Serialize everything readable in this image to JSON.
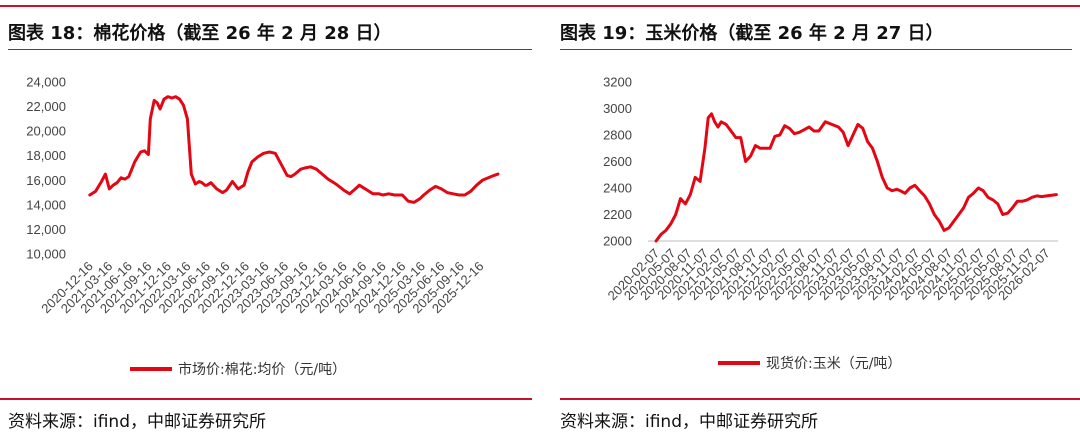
{
  "header": {
    "left_title": "图表 18：棉花价格（截至 26 年 2 月 28 日）",
    "right_title": "图表 19：玉米价格（截至 26 年 2 月 27 日）"
  },
  "footer": {
    "left_source": "资料来源：ifind，中邮证券研究所",
    "right_source": "资料来源：ifind，中邮证券研究所"
  },
  "colors": {
    "accent": "#c8102e",
    "line": "#e30613"
  },
  "chart_data": [
    {
      "type": "line",
      "ylim": [
        10000,
        24000
      ],
      "yticks": [
        "10,000",
        "12,000",
        "14,000",
        "16,000",
        "18,000",
        "20,000",
        "22,000",
        "24,000"
      ],
      "ytick_values": [
        10000,
        12000,
        14000,
        16000,
        18000,
        20000,
        22000,
        24000
      ],
      "xticks": [
        "2020-12-16",
        "2021-03-16",
        "2021-06-16",
        "2021-09-16",
        "2021-12-16",
        "2022-03-16",
        "2022-06-16",
        "2022-09-16",
        "2022-12-16",
        "2023-03-16",
        "2023-06-16",
        "2023-09-16",
        "2023-12-16",
        "2024-03-16",
        "2024-06-16",
        "2024-09-16",
        "2024-12-16",
        "2025-03-16",
        "2025-06-16",
        "2025-09-16",
        "2025-12-16"
      ],
      "xlim": [
        -0.5,
        21.0
      ],
      "grid": false,
      "legend": "bottom",
      "series": [
        {
          "name": "市场价:棉花:均价（元/吨）",
          "x": [
            0,
            0.3,
            0.6,
            0.8,
            1.0,
            1.2,
            1.4,
            1.6,
            1.8,
            2.0,
            2.3,
            2.6,
            2.8,
            3.0,
            3.1,
            3.3,
            3.45,
            3.6,
            3.8,
            4.0,
            4.2,
            4.4,
            4.6,
            4.8,
            5.0,
            5.2,
            5.4,
            5.6,
            5.75,
            5.9,
            6.0,
            6.2,
            6.5,
            6.8,
            7.0,
            7.3,
            7.6,
            7.9,
            8.1,
            8.3,
            8.6,
            8.9,
            9.2,
            9.5,
            9.8,
            10.1,
            10.3,
            10.5,
            10.8,
            11.0,
            11.3,
            11.6,
            11.9,
            12.2,
            12.6,
            13.0,
            13.3,
            13.6,
            13.8,
            14.0,
            14.2,
            14.5,
            14.8,
            15.0,
            15.3,
            15.6,
            16.0,
            16.3,
            16.6,
            16.9,
            17.1,
            17.4,
            17.7,
            18.0,
            18.3,
            18.6,
            18.9,
            19.2,
            19.5,
            19.8,
            20.1,
            20.4,
            20.7,
            20.9
          ],
          "values": [
            14800,
            15100,
            15900,
            16500,
            15300,
            15600,
            15800,
            16200,
            16100,
            16300,
            17500,
            18300,
            18400,
            18100,
            21000,
            22500,
            22300,
            21800,
            22600,
            22800,
            22700,
            22800,
            22600,
            22100,
            21000,
            16500,
            15700,
            15900,
            15800,
            15600,
            15600,
            15800,
            15300,
            15000,
            15200,
            15900,
            15300,
            15600,
            16700,
            17500,
            17900,
            18200,
            18300,
            18200,
            17300,
            16400,
            16300,
            16500,
            16900,
            17000,
            17100,
            16900,
            16500,
            16100,
            15700,
            15200,
            14900,
            15300,
            15600,
            15400,
            15200,
            14900,
            14900,
            14800,
            14900,
            14800,
            14800,
            14300,
            14200,
            14500,
            14800,
            15200,
            15500,
            15300,
            15000,
            14900,
            14800,
            14800,
            15100,
            15600,
            16000,
            16200,
            16400,
            16500
          ]
        }
      ]
    },
    {
      "type": "line",
      "ylim": [
        2000,
        3200
      ],
      "yticks": [
        "2000",
        "2200",
        "2400",
        "2600",
        "2800",
        "3000",
        "3200"
      ],
      "ytick_values": [
        2000,
        2200,
        2400,
        2600,
        2800,
        3000,
        3200
      ],
      "xticks": [
        "2020-02-07",
        "2020-05-07",
        "2020-08-07",
        "2020-11-07",
        "2021-02-07",
        "2021-05-07",
        "2021-08-07",
        "2021-11-07",
        "2022-02-07",
        "2022-05-07",
        "2022-08-07",
        "2022-11-07",
        "2023-02-07",
        "2023-05-07",
        "2023-08-07",
        "2023-11-07",
        "2024-02-07",
        "2024-05-07",
        "2024-08-07",
        "2024-11-07",
        "2025-02-07",
        "2025-05-07",
        "2025-08-07",
        "2025-11-07",
        "2026-02-07"
      ],
      "xlim": [
        -0.5,
        24.7
      ],
      "grid": false,
      "legend": "bottom",
      "series": [
        {
          "name": "现货价:玉米（元/吨）",
          "x": [
            0,
            0.3,
            0.6,
            0.9,
            1.2,
            1.5,
            1.8,
            2.1,
            2.4,
            2.7,
            3.0,
            3.2,
            3.4,
            3.6,
            3.8,
            4.0,
            4.3,
            4.6,
            4.9,
            5.2,
            5.5,
            5.8,
            6.1,
            6.4,
            6.7,
            7.0,
            7.3,
            7.6,
            7.9,
            8.2,
            8.5,
            8.8,
            9.1,
            9.4,
            9.7,
            10.0,
            10.4,
            10.8,
            11.2,
            11.5,
            11.8,
            12.1,
            12.4,
            12.7,
            13.0,
            13.3,
            13.6,
            13.9,
            14.2,
            14.5,
            14.8,
            15.0,
            15.3,
            15.6,
            15.9,
            16.2,
            16.5,
            16.8,
            17.1,
            17.4,
            17.7,
            18.0,
            18.3,
            18.6,
            18.9,
            19.2,
            19.5,
            19.8,
            20.1,
            20.4,
            20.7,
            21.0,
            21.3,
            21.6,
            21.9,
            22.2,
            22.5,
            22.8,
            23.1,
            23.4,
            23.7,
            24.0,
            24.3,
            24.6
          ],
          "values": [
            2000,
            2050,
            2080,
            2130,
            2200,
            2320,
            2280,
            2350,
            2480,
            2450,
            2700,
            2930,
            2960,
            2900,
            2860,
            2900,
            2880,
            2830,
            2780,
            2780,
            2600,
            2640,
            2720,
            2700,
            2700,
            2700,
            2790,
            2800,
            2870,
            2850,
            2810,
            2820,
            2840,
            2860,
            2830,
            2830,
            2900,
            2880,
            2860,
            2820,
            2720,
            2800,
            2880,
            2850,
            2750,
            2700,
            2600,
            2480,
            2400,
            2380,
            2390,
            2380,
            2360,
            2400,
            2420,
            2380,
            2340,
            2280,
            2200,
            2150,
            2080,
            2100,
            2150,
            2200,
            2250,
            2330,
            2360,
            2400,
            2380,
            2330,
            2310,
            2280,
            2200,
            2210,
            2250,
            2300,
            2300,
            2310,
            2330,
            2340,
            2335,
            2340,
            2345,
            2350
          ]
        }
      ]
    }
  ]
}
